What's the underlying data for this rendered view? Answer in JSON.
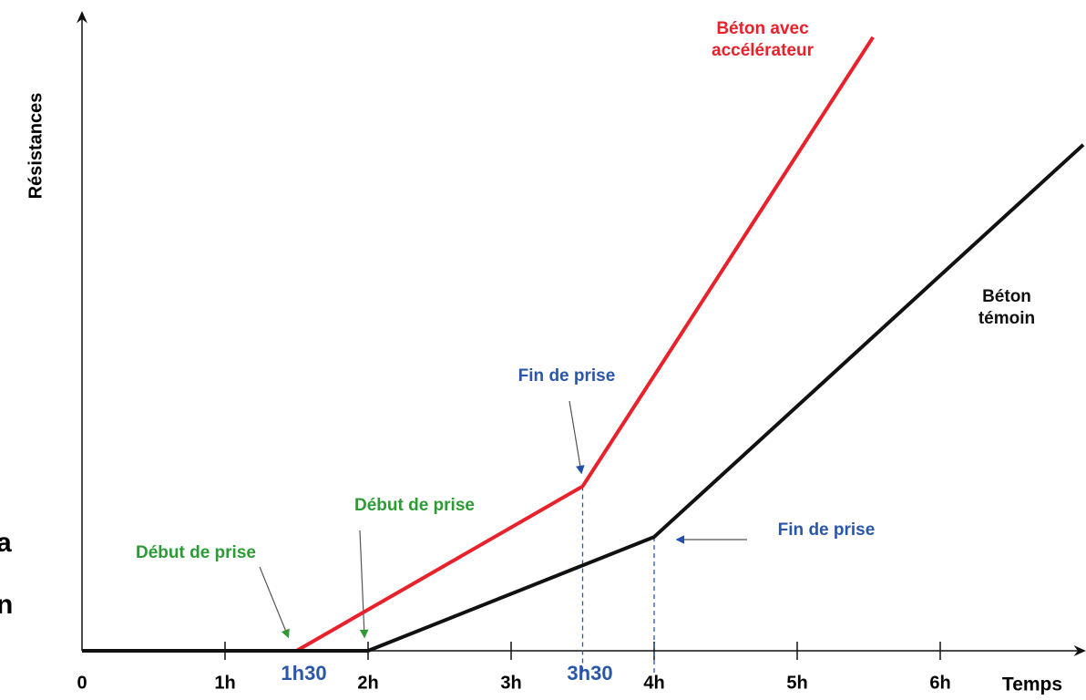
{
  "chart_data": {
    "type": "line",
    "y_label": "Résistances",
    "x_label": "Temps",
    "xlim": [
      0,
      7
    ],
    "ylim": [
      0,
      100
    ],
    "xticks": [
      0,
      {
        "value": 1,
        "label": "1h"
      },
      {
        "value": 2,
        "label": "2h"
      },
      {
        "value": 3,
        "label": "3h"
      },
      {
        "value": 4,
        "label": "4h"
      },
      {
        "value": 5,
        "label": "5h"
      },
      {
        "value": 6,
        "label": "6h"
      }
    ],
    "highlight_ticks": [
      {
        "value": 1.5,
        "label": "1h30"
      },
      {
        "value": 3.5,
        "label": "3h30"
      }
    ],
    "series": [
      {
        "name": "Béton avec accélérateur",
        "color": "#e8212a",
        "x": [
          0,
          1.5,
          3.5,
          5.53
        ],
        "values": [
          0,
          0,
          26,
          97
        ]
      },
      {
        "name": "Béton témoin",
        "color": "#111111",
        "x": [
          0,
          2,
          4,
          7
        ],
        "values": [
          0,
          0,
          18,
          80
        ]
      }
    ],
    "annotations": [
      {
        "text": "Début de prise",
        "color": "#2e9a35"
      },
      {
        "text": "Début de prise",
        "color": "#2e9a35"
      },
      {
        "text": "Fin de prise",
        "color": "#2a56a8"
      },
      {
        "text": "Fin de prise",
        "color": "#2a56a8"
      }
    ],
    "cropped_text": [
      "a",
      "n"
    ]
  }
}
